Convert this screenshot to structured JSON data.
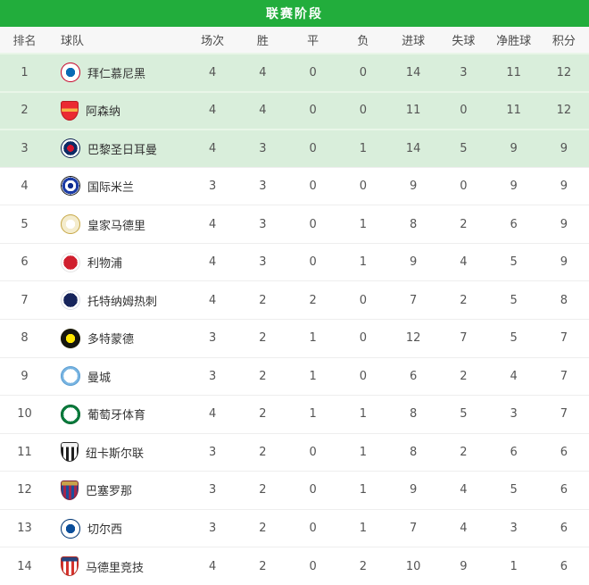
{
  "theme": {
    "accent_green": "#22ad3c",
    "header_row_bg": "#f7f7f7",
    "highlight_row_bg": "#d9eedb",
    "highlight_separator": "#e9f6e8",
    "row_separator": "#eeeeee",
    "title_text_color": "#ffffff",
    "team_name_color": "#333333",
    "stat_text_color": "#555555"
  },
  "title_bar": {
    "title": "联赛阶段"
  },
  "columns": [
    "排名",
    "球队",
    "场次",
    "胜",
    "平",
    "负",
    "进球",
    "失球",
    "净胜球",
    "积分"
  ],
  "highlighted_rank_count": 3,
  "standings": [
    {
      "rank": 1,
      "team": "拜仁慕尼黑",
      "played": 4,
      "win": 4,
      "draw": 0,
      "loss": 0,
      "goals_for": 14,
      "goals_against": 3,
      "goal_diff": 11,
      "points": 12,
      "highlight": true,
      "logo": {
        "shape": "circle",
        "pattern": "rings",
        "colors": [
          "#e3173c",
          "#ffffff",
          "#0a6ab4"
        ],
        "border": "#c40e31"
      }
    },
    {
      "rank": 2,
      "team": "阿森纳",
      "played": 4,
      "win": 4,
      "draw": 0,
      "loss": 0,
      "goals_for": 11,
      "goals_against": 0,
      "goal_diff": 11,
      "points": 12,
      "highlight": true,
      "logo": {
        "shape": "shield",
        "pattern": "band",
        "colors": [
          "#eb2a32",
          "#f6b345"
        ],
        "border": "#b61d24"
      }
    },
    {
      "rank": 3,
      "team": "巴黎圣日耳曼",
      "played": 4,
      "win": 3,
      "draw": 0,
      "loss": 1,
      "goals_for": 14,
      "goals_against": 5,
      "goal_diff": 9,
      "points": 9,
      "highlight": true,
      "logo": {
        "shape": "circle",
        "pattern": "rings",
        "colors": [
          "#0d2b66",
          "#ffffff",
          "#0d2b66",
          "#d6122e"
        ],
        "border": "#0a1f4d"
      }
    },
    {
      "rank": 4,
      "team": "国际米兰",
      "played": 3,
      "win": 3,
      "draw": 0,
      "loss": 0,
      "goals_for": 9,
      "goals_against": 0,
      "goal_diff": 9,
      "points": 9,
      "highlight": false,
      "logo": {
        "shape": "circle",
        "pattern": "rings",
        "colors": [
          "#13142a",
          "#ffffff",
          "#1b3ba5",
          "#ffffff",
          "#0b2a8c"
        ],
        "border": "#111111"
      }
    },
    {
      "rank": 5,
      "team": "皇家马德里",
      "played": 4,
      "win": 3,
      "draw": 0,
      "loss": 1,
      "goals_for": 8,
      "goals_against": 2,
      "goal_diff": 6,
      "points": 9,
      "highlight": false,
      "logo": {
        "shape": "circle",
        "pattern": "rings",
        "colors": [
          "#d9c05e",
          "#f4eccd",
          "#ffffff"
        ],
        "border": "#c9ab4f"
      }
    },
    {
      "rank": 6,
      "team": "利物浦",
      "played": 4,
      "win": 3,
      "draw": 0,
      "loss": 1,
      "goals_for": 9,
      "goals_against": 4,
      "goal_diff": 5,
      "points": 9,
      "highlight": false,
      "logo": {
        "shape": "circle",
        "pattern": "rings",
        "colors": [
          "#ffffff",
          "#d01f2e"
        ],
        "border": "#e3e3e3"
      }
    },
    {
      "rank": 7,
      "team": "托特纳姆热刺",
      "played": 4,
      "win": 2,
      "draw": 2,
      "loss": 0,
      "goals_for": 7,
      "goals_against": 2,
      "goal_diff": 5,
      "points": 8,
      "highlight": false,
      "logo": {
        "shape": "circle",
        "pattern": "rings",
        "colors": [
          "#ffffff",
          "#16245c"
        ],
        "border": "#d9dce6"
      }
    },
    {
      "rank": 8,
      "team": "多特蒙德",
      "played": 3,
      "win": 2,
      "draw": 1,
      "loss": 0,
      "goals_for": 12,
      "goals_against": 7,
      "goal_diff": 5,
      "points": 7,
      "highlight": false,
      "logo": {
        "shape": "circle",
        "pattern": "rings",
        "colors": [
          "#ffe600",
          "#16160f",
          "#ffe600"
        ],
        "border": "#141414"
      }
    },
    {
      "rank": 9,
      "team": "曼城",
      "played": 3,
      "win": 2,
      "draw": 1,
      "loss": 0,
      "goals_for": 6,
      "goals_against": 2,
      "goal_diff": 4,
      "points": 7,
      "highlight": false,
      "logo": {
        "shape": "circle",
        "pattern": "rings",
        "colors": [
          "#79b5e2",
          "#ffffff"
        ],
        "border": "#5d9fd3"
      }
    },
    {
      "rank": 10,
      "team": "葡萄牙体育",
      "played": 4,
      "win": 2,
      "draw": 1,
      "loss": 1,
      "goals_for": 8,
      "goals_against": 5,
      "goal_diff": 3,
      "points": 7,
      "highlight": false,
      "logo": {
        "shape": "circle",
        "pattern": "rings",
        "colors": [
          "#0a7d3e",
          "#ffffff"
        ],
        "border": "#06662f"
      }
    },
    {
      "rank": 11,
      "team": "纽卡斯尔联",
      "played": 3,
      "win": 2,
      "draw": 0,
      "loss": 1,
      "goals_for": 8,
      "goals_against": 2,
      "goal_diff": 6,
      "points": 6,
      "highlight": false,
      "logo": {
        "shape": "shield",
        "pattern": "stripes",
        "colors": [
          "#1e1e1e",
          "#ffffff",
          "#f2f2f2"
        ],
        "border": "#2a2a2a"
      }
    },
    {
      "rank": 12,
      "team": "巴塞罗那",
      "played": 3,
      "win": 2,
      "draw": 0,
      "loss": 1,
      "goals_for": 9,
      "goals_against": 4,
      "goal_diff": 5,
      "points": 6,
      "highlight": false,
      "logo": {
        "shape": "shield",
        "pattern": "stripes",
        "colors": [
          "#1a4e9c",
          "#a6244c",
          "#c9a24a"
        ],
        "border": "#7a1f3d"
      }
    },
    {
      "rank": 13,
      "team": "切尔西",
      "played": 3,
      "win": 2,
      "draw": 0,
      "loss": 1,
      "goals_for": 7,
      "goals_against": 4,
      "goal_diff": 3,
      "points": 6,
      "highlight": false,
      "logo": {
        "shape": "circle",
        "pattern": "rings",
        "colors": [
          "#0a4e9b",
          "#ffffff",
          "#0a4e9b"
        ],
        "border": "#083a74"
      }
    },
    {
      "rank": 14,
      "team": "马德里竞技",
      "played": 4,
      "win": 2,
      "draw": 0,
      "loss": 2,
      "goals_for": 10,
      "goals_against": 9,
      "goal_diff": 1,
      "points": 6,
      "highlight": false,
      "logo": {
        "shape": "shield",
        "pattern": "stripes",
        "colors": [
          "#d5332d",
          "#ffffff",
          "#28457e"
        ],
        "border": "#b3281f"
      }
    }
  ]
}
